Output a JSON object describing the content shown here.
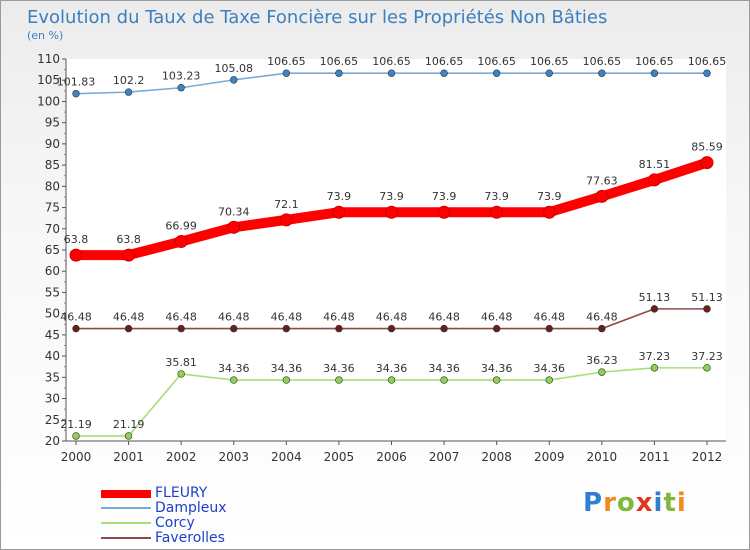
{
  "title": "Evolution du Taux de Taxe Foncière sur les Propriétés Non Bâties",
  "subtitle": "(en %)",
  "logo": {
    "letters": [
      {
        "ch": "P",
        "color": "#2f7fd0"
      },
      {
        "ch": "r",
        "color": "#f08a1c"
      },
      {
        "ch": "o",
        "color": "#7fb83a"
      },
      {
        "ch": "x",
        "color": "#e0361f"
      },
      {
        "ch": "i",
        "color": "#2f7fd0"
      },
      {
        "ch": "t",
        "color": "#7fb83a"
      },
      {
        "ch": "i",
        "color": "#f08a1c"
      }
    ]
  },
  "chart_data": {
    "type": "line",
    "title": "Evolution du Taux de Taxe Foncière sur les Propriétés Non Bâties",
    "ylabel": "(en %)",
    "ylim": [
      20,
      110
    ],
    "yticks": [
      "20",
      "25",
      "30",
      "35",
      "40",
      "45",
      "50",
      "55",
      "60",
      "65",
      "70",
      "75",
      "80",
      "85",
      "90",
      "95",
      "100",
      "105",
      "110"
    ],
    "grid": false,
    "legend_position": "bottom-left",
    "x": [
      "2000",
      "2001",
      "2002",
      "2003",
      "2004",
      "2005",
      "2006",
      "2007",
      "2008",
      "2009",
      "2010",
      "2011",
      "2012"
    ],
    "series": [
      {
        "name": "FLEURY",
        "color": "#ff0000",
        "values": [
          63.8,
          63.8,
          66.99,
          70.34,
          72.1,
          73.9,
          73.9,
          73.9,
          73.9,
          73.9,
          77.63,
          81.51,
          85.59
        ],
        "labels": [
          "63.8",
          "63.8",
          "66.99",
          "70.34",
          "72.1",
          "73.9",
          "73.9",
          "73.9",
          "73.9",
          "73.9",
          "77.63",
          "81.51",
          "85.59"
        ]
      },
      {
        "name": "Dampleux",
        "color": "#7aaad8",
        "marker": "#3a85c6",
        "values": [
          101.83,
          102.2,
          103.23,
          105.08,
          106.65,
          106.65,
          106.65,
          106.65,
          106.65,
          106.65,
          106.65,
          106.65,
          106.65
        ],
        "labels": [
          "101.83",
          "102.2",
          "103.23",
          "105.08",
          "106.65",
          "106.65",
          "106.65",
          "106.65",
          "106.65",
          "106.65",
          "106.65",
          "106.65",
          "106.65"
        ]
      },
      {
        "name": "Corcy",
        "color": "#a8df7a",
        "marker": "#8fd24f",
        "values": [
          21.19,
          21.19,
          35.81,
          34.36,
          34.36,
          34.36,
          34.36,
          34.36,
          34.36,
          34.36,
          36.23,
          37.23,
          37.23
        ],
        "labels": [
          "21.19",
          "21.19",
          "35.81",
          "34.36",
          "34.36",
          "34.36",
          "34.36",
          "34.36",
          "34.36",
          "34.36",
          "36.23",
          "37.23",
          "37.23"
        ]
      },
      {
        "name": "Faverolles",
        "color": "#8a4b4b",
        "marker": "#6a1f1f",
        "values": [
          46.48,
          46.48,
          46.48,
          46.48,
          46.48,
          46.48,
          46.48,
          46.48,
          46.48,
          46.48,
          46.48,
          51.13,
          51.13
        ],
        "labels": [
          "46.48",
          "46.48",
          "46.48",
          "46.48",
          "46.48",
          "46.48",
          "46.48",
          "46.48",
          "46.48",
          "46.48",
          "46.48",
          "51.13",
          "51.13"
        ]
      }
    ]
  }
}
